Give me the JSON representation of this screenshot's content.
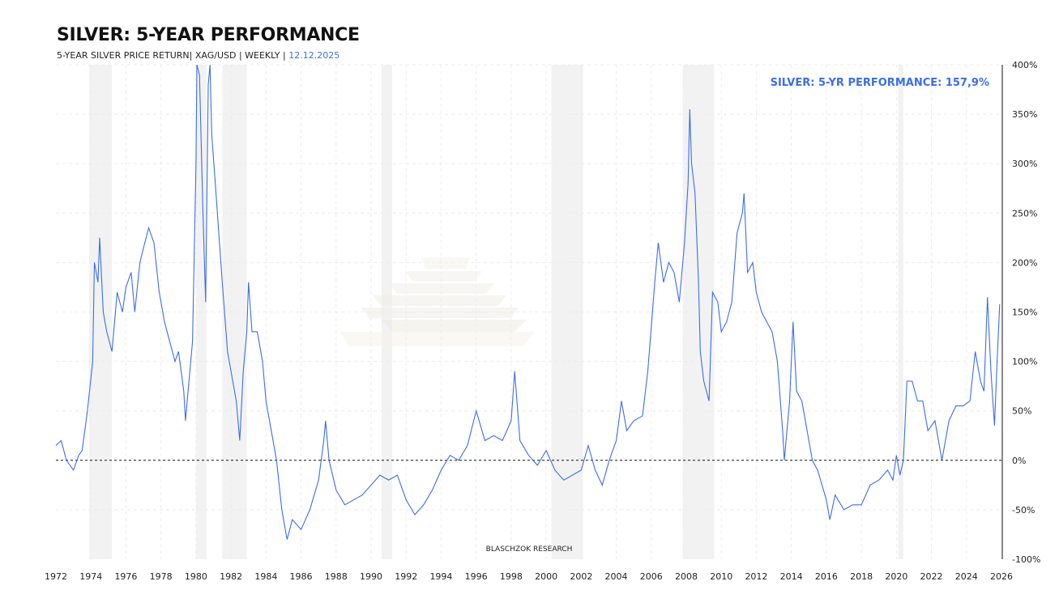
{
  "header": {
    "title": "SILVER: 5-YEAR PERFORMANCE",
    "subtitle": "5-YEAR SILVER PRICE RETURN| XAG/USD | WEEKLY | ",
    "date": "12.12.2025"
  },
  "chart_data": {
    "type": "line",
    "title": "SILVER: 5-YEAR PERFORMANCE",
    "annotation": "SILVER: 5-YR PERFORMANCE: 157,9%",
    "credit": "BLASCHZOK   RESEARCH",
    "xlim": [
      1972,
      2026
    ],
    "ylim": [
      -100,
      400
    ],
    "y_axis_position": "right",
    "grid": true,
    "zero_line": "dashed",
    "line_color": "#3b6ee8",
    "band_color": "#f2f2f2",
    "x_ticks": [
      "1972",
      "1974",
      "1976",
      "1978",
      "1980",
      "1982",
      "1984",
      "1986",
      "1988",
      "1990",
      "1992",
      "1994",
      "1996",
      "1998",
      "2000",
      "2002",
      "2004",
      "2006",
      "2008",
      "2010",
      "2012",
      "2014",
      "2016",
      "2018",
      "2020",
      "2022",
      "2024",
      "2026"
    ],
    "y_ticks": [
      {
        "v": 400,
        "label": "400%"
      },
      {
        "v": 350,
        "label": "350%"
      },
      {
        "v": 300,
        "label": "300%"
      },
      {
        "v": 250,
        "label": "250%"
      },
      {
        "v": 200,
        "label": "200%"
      },
      {
        "v": 150,
        "label": "150%"
      },
      {
        "v": 100,
        "label": "100%"
      },
      {
        "v": 50,
        "label": "50%"
      },
      {
        "v": 0,
        "label": "0%"
      },
      {
        "v": -50,
        "label": "-50%"
      },
      {
        "v": -100,
        "label": "-100%"
      }
    ],
    "shaded_periods": [
      [
        1973.9,
        1975.2
      ],
      [
        1980.0,
        1980.6
      ],
      [
        1981.5,
        1982.9
      ],
      [
        1990.6,
        1991.2
      ],
      [
        2000.3,
        2002.1
      ],
      [
        2007.8,
        2009.6
      ],
      [
        2020.1,
        2020.4
      ]
    ],
    "series": [
      {
        "x": [
          1972.0,
          1972.3,
          1972.6,
          1973.0,
          1973.3,
          1973.5,
          1973.8,
          1974.1,
          1974.2,
          1974.4,
          1974.5,
          1974.7,
          1974.9,
          1975.2,
          1975.5,
          1975.8,
          1976.0,
          1976.3,
          1976.5,
          1976.8,
          1977.0,
          1977.3,
          1977.6,
          1977.9,
          1978.2,
          1978.5,
          1978.8,
          1979.0,
          1979.3,
          1979.4,
          1979.6,
          1979.8,
          1980.0,
          1980.05,
          1980.2,
          1980.4,
          1980.55,
          1980.7,
          1980.8,
          1980.9,
          1981.1,
          1981.3,
          1981.5,
          1981.8,
          1982.0,
          1982.3,
          1982.5,
          1982.7,
          1982.9,
          1983.0,
          1983.2,
          1983.5,
          1983.8,
          1984.0,
          1984.3,
          1984.6,
          1984.9,
          1985.2,
          1985.5,
          1986.0,
          1986.5,
          1987.0,
          1987.3,
          1987.4,
          1987.6,
          1988.0,
          1988.5,
          1989.0,
          1989.5,
          1990.0,
          1990.5,
          1991.0,
          1991.5,
          1992.0,
          1992.5,
          1993.0,
          1993.5,
          1994.0,
          1994.5,
          1995.0,
          1995.5,
          1996.0,
          1996.5,
          1997.0,
          1997.5,
          1998.0,
          1998.2,
          1998.5,
          1999.0,
          1999.5,
          2000.0,
          2000.5,
          2001.0,
          2001.5,
          2002.0,
          2002.4,
          2002.8,
          2003.2,
          2003.6,
          2004.0,
          2004.3,
          2004.6,
          2005.0,
          2005.5,
          2005.8,
          2006.2,
          2006.4,
          2006.7,
          2007.0,
          2007.3,
          2007.6,
          2007.9,
          2008.1,
          2008.2,
          2008.3,
          2008.5,
          2008.7,
          2008.8,
          2009.0,
          2009.3,
          2009.5,
          2009.8,
          2010.0,
          2010.3,
          2010.6,
          2010.9,
          2011.2,
          2011.3,
          2011.5,
          2011.8,
          2012.0,
          2012.3,
          2012.6,
          2012.9,
          2013.2,
          2013.5,
          2013.6,
          2013.9,
          2014.1,
          2014.3,
          2014.6,
          2014.9,
          2015.2,
          2015.5,
          2016.0,
          2016.2,
          2016.5,
          2017.0,
          2017.5,
          2018.0,
          2018.5,
          2019.0,
          2019.5,
          2019.8,
          2020.0,
          2020.2,
          2020.4,
          2020.6,
          2020.9,
          2021.2,
          2021.5,
          2021.8,
          2022.2,
          2022.6,
          2023.0,
          2023.4,
          2023.8,
          2024.2,
          2024.5,
          2024.8,
          2025.0,
          2025.2,
          2025.4,
          2025.6,
          2025.75,
          2025.9
        ],
        "y": [
          15,
          20,
          0,
          -10,
          5,
          10,
          50,
          100,
          200,
          180,
          225,
          150,
          130,
          110,
          170,
          150,
          175,
          190,
          150,
          200,
          215,
          235,
          220,
          170,
          140,
          120,
          100,
          110,
          70,
          40,
          80,
          120,
          300,
          400,
          390,
          250,
          160,
          380,
          400,
          330,
          280,
          230,
          180,
          110,
          90,
          60,
          20,
          90,
          130,
          180,
          130,
          130,
          100,
          60,
          30,
          0,
          -50,
          -80,
          -60,
          -70,
          -50,
          -20,
          20,
          40,
          0,
          -30,
          -45,
          -40,
          -35,
          -25,
          -15,
          -20,
          -15,
          -40,
          -55,
          -45,
          -30,
          -10,
          5,
          0,
          15,
          50,
          20,
          25,
          20,
          40,
          90,
          20,
          5,
          -5,
          10,
          -10,
          -20,
          -15,
          -10,
          15,
          -10,
          -25,
          0,
          20,
          60,
          30,
          40,
          45,
          90,
          180,
          220,
          180,
          200,
          190,
          160,
          220,
          280,
          355,
          300,
          270,
          180,
          110,
          80,
          60,
          170,
          160,
          130,
          140,
          160,
          230,
          250,
          270,
          190,
          200,
          170,
          150,
          140,
          130,
          100,
          30,
          0,
          60,
          140,
          70,
          60,
          30,
          0,
          -10,
          -40,
          -60,
          -35,
          -50,
          -45,
          -45,
          -25,
          -20,
          -10,
          -20,
          5,
          -15,
          0,
          80,
          80,
          60,
          60,
          30,
          40,
          0,
          40,
          55,
          55,
          60,
          110,
          80,
          70,
          165,
          90,
          35,
          100,
          157.9
        ]
      }
    ]
  }
}
